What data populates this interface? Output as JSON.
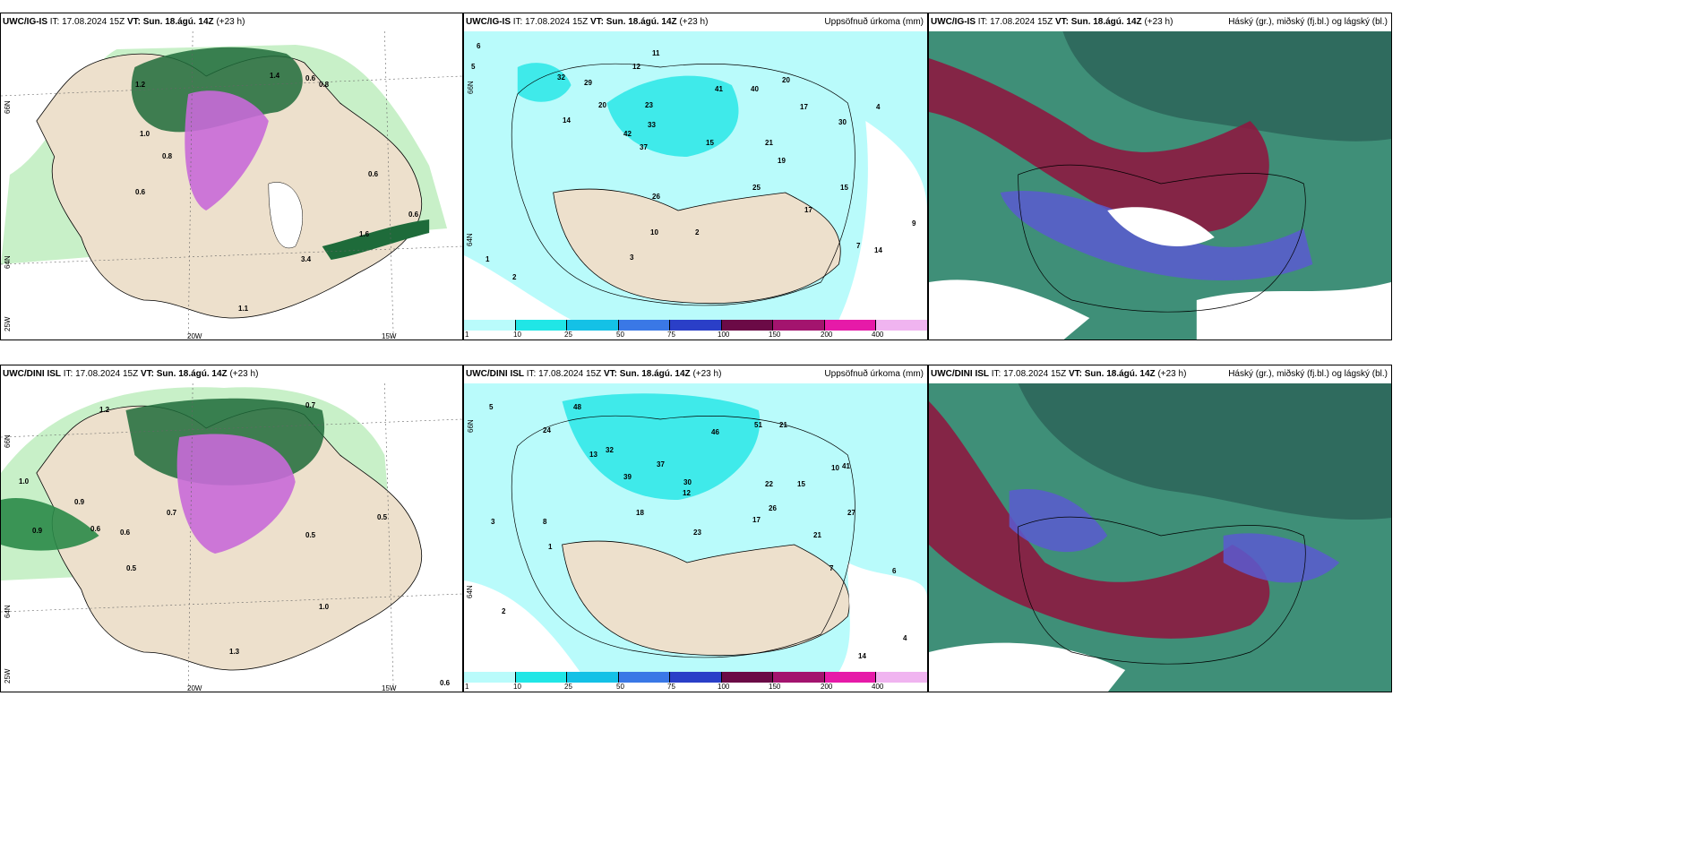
{
  "panels": [
    {
      "model": "UWC/IG-IS",
      "it_label": "IT:",
      "it": "17.08.2024 15Z",
      "vt_label": "VT:",
      "vt": "Sun. 18.ágú. 14Z",
      "lead": "(+23 h)",
      "right": ""
    },
    {
      "model": "UWC/IG-IS",
      "it_label": "IT:",
      "it": "17.08.2024 15Z",
      "vt_label": "VT:",
      "vt": "Sun. 18.ágú. 14Z",
      "lead": "(+23 h)",
      "right": "Uppsöfnuð úrkoma (mm)"
    },
    {
      "model": "UWC/IG-IS",
      "it_label": "IT:",
      "it": "17.08.2024 15Z",
      "vt_label": "VT:",
      "vt": "Sun. 18.ágú. 14Z",
      "lead": "(+23 h)",
      "right": "Háský (gr.), miðský (fj.bl.) og lágský (bl.)"
    },
    {
      "model": "UWC/DINI ISL",
      "it_label": "IT:",
      "it": "17.08.2024 15Z",
      "vt_label": "VT:",
      "vt": "Sun. 18.ágú. 14Z",
      "lead": "(+23 h)",
      "right": ""
    },
    {
      "model": "UWC/DINI ISL",
      "it_label": "IT:",
      "it": "17.08.2024 15Z",
      "vt_label": "VT:",
      "vt": "Sun. 18.ágú. 14Z",
      "lead": "(+23 h)",
      "right": "Uppsöfnuð úrkoma (mm)"
    },
    {
      "model": "UWC/DINI ISL",
      "it_label": "IT:",
      "it": "17.08.2024 15Z",
      "vt_label": "VT:",
      "vt": "Sun. 18.ágú. 14Z",
      "lead": "(+23 h)",
      "right": "Háský (gr.), miðský (fj.bl.) og lágský (bl.)"
    }
  ],
  "axis_labels": {
    "lat66": "66N",
    "lat64": "64N",
    "lon25": "25W",
    "lon20": "20W",
    "lon15": "15W"
  },
  "colorbar": {
    "ticks": [
      "1",
      "10",
      "25",
      "50",
      "75",
      "100",
      "150",
      "200",
      "400"
    ],
    "colors": [
      "#b9fbfb",
      "#20e6e6",
      "#14c1e6",
      "#3a78e6",
      "#2a3fc8",
      "#6b0a46",
      "#a3146e",
      "#e61aa8",
      "#f0b4f0"
    ]
  },
  "numbers_top_left": [
    "1.4",
    "0.6",
    "0.8",
    "1.2",
    "1.0",
    "0.8",
    "0.6",
    "0.6",
    "1.6",
    "0.6",
    "1.1",
    "3.4",
    "0.6",
    "1.0"
  ],
  "numbers_bottom_left": [
    "0.7",
    "1.2",
    "1.0",
    "0.9",
    "0.9",
    "0.6",
    "0.6",
    "0.5",
    "0.7",
    "0.5",
    "1.0",
    "1.3",
    "0.6",
    "0.5"
  ],
  "numbers_top_mid": [
    "6",
    "5",
    "12",
    "11",
    "32",
    "29",
    "20",
    "23",
    "41",
    "40",
    "20",
    "17",
    "30",
    "14",
    "42",
    "33",
    "37",
    "15",
    "21",
    "19",
    "25",
    "26",
    "17",
    "15",
    "10",
    "14",
    "9",
    "7",
    "4",
    "2",
    "1",
    "2",
    "3"
  ],
  "numbers_bottom_mid": [
    "5",
    "24",
    "48",
    "46",
    "51",
    "21",
    "13",
    "32",
    "39",
    "37",
    "30",
    "22",
    "41",
    "18",
    "26",
    "17",
    "23",
    "15",
    "21",
    "27",
    "12",
    "10",
    "7",
    "8",
    "6",
    "4",
    "3",
    "2",
    "1",
    "14"
  ],
  "colors": {
    "land": "#ede0cc",
    "sea_mid": "#b9fbfb",
    "green_dark": "#1e6b3a",
    "green_light": "#a8e6a8",
    "magenta": "#c86ad8",
    "cloud_high": "#2f6b5e",
    "cloud_mid": "#8c1a40",
    "cloud_low": "#5a5ad0"
  }
}
